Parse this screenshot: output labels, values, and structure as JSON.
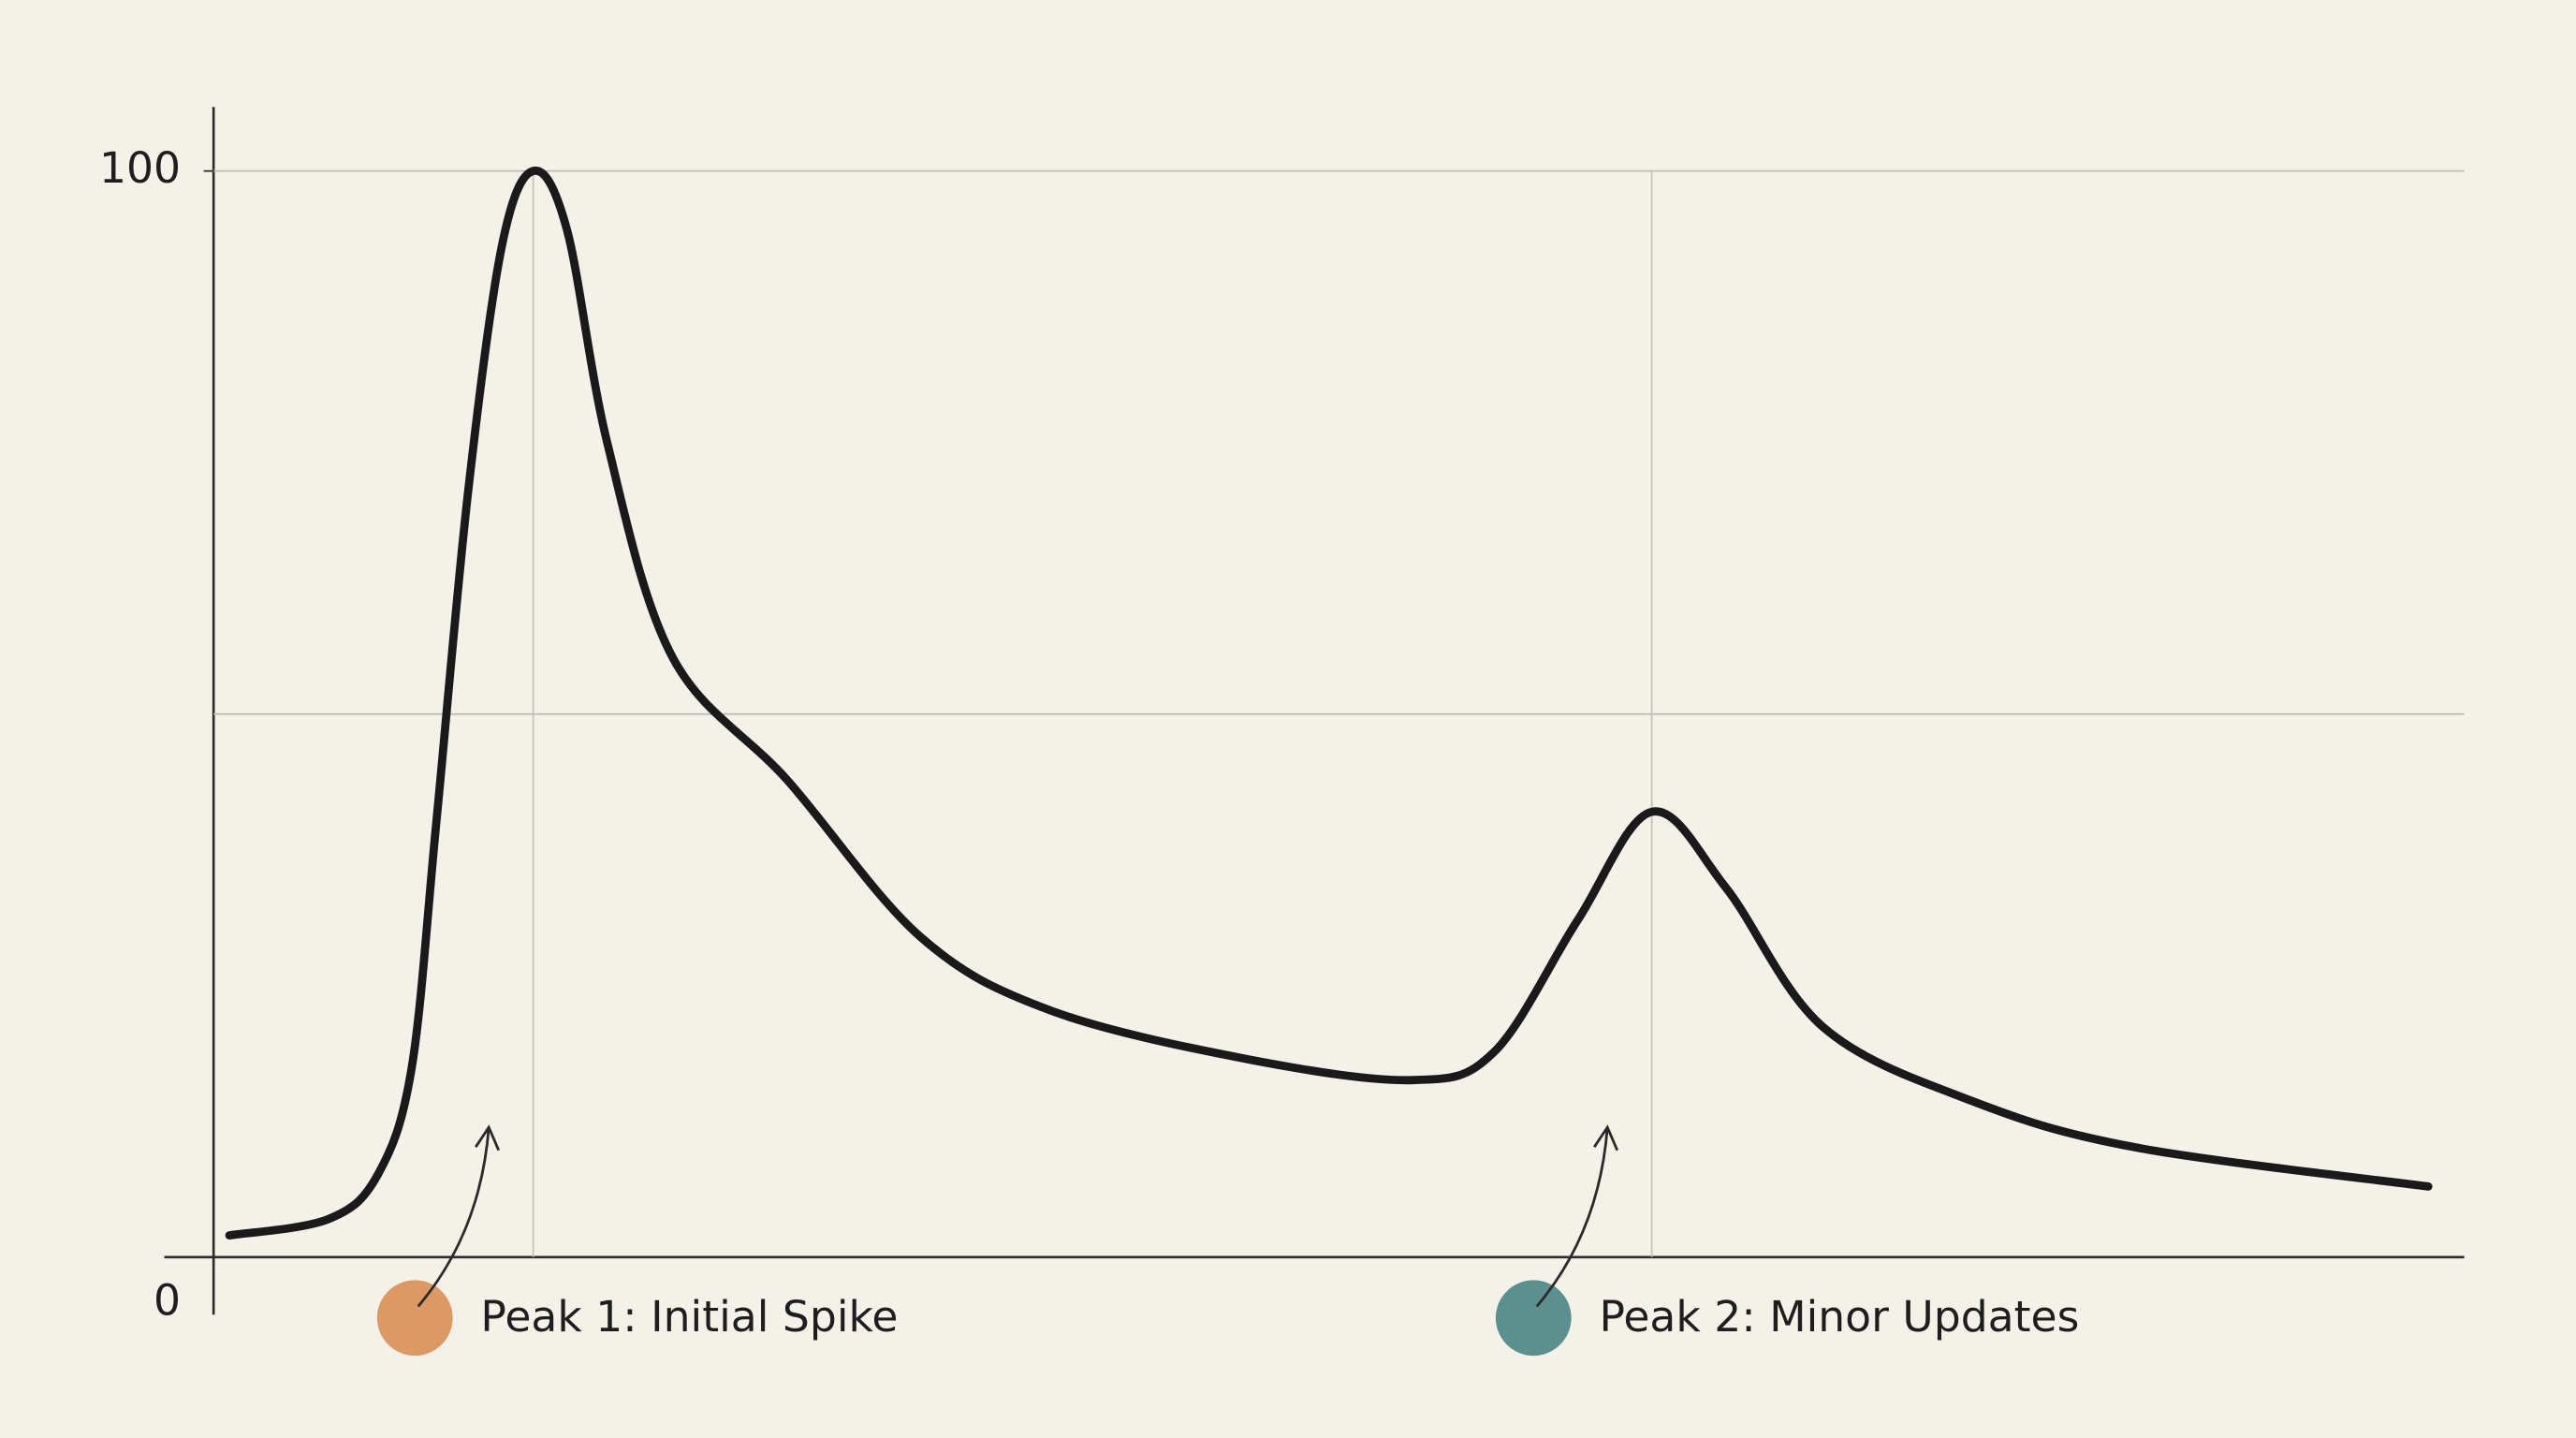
{
  "chart_data": {
    "type": "line",
    "x": [
      0.7,
      5.1,
      7.3,
      8.8,
      9.9,
      11.3,
      12.8,
      14.2,
      15.7,
      17.5,
      20.4,
      25.5,
      31.4,
      37.2,
      46.0,
      53.3,
      56.9,
      60.6,
      63.9,
      67.2,
      71.5,
      78.1,
      85.4,
      98.4
    ],
    "values": [
      2.0,
      3.5,
      7.6,
      17.4,
      40.1,
      70.3,
      93.0,
      100,
      94.6,
      74.9,
      55.2,
      43.9,
      29.5,
      22.7,
      18.2,
      16.3,
      18.9,
      31.0,
      41.0,
      34.0,
      21.2,
      14.4,
      10.1,
      6.5
    ],
    "color": "#1a1a1a",
    "xlim": [
      0,
      100
    ],
    "ylim": [
      0,
      100
    ],
    "yticks": [
      0,
      100
    ],
    "minor_gridlines": [
      50,
      100
    ],
    "grid": true,
    "annotations": [
      {
        "text": "Peak 1: Initial Spike",
        "x": 14.2,
        "color": "#d98f55"
      },
      {
        "text": "Peak 2: Minor Updates",
        "x": 63.9,
        "color": "#4a8585"
      }
    ]
  }
}
